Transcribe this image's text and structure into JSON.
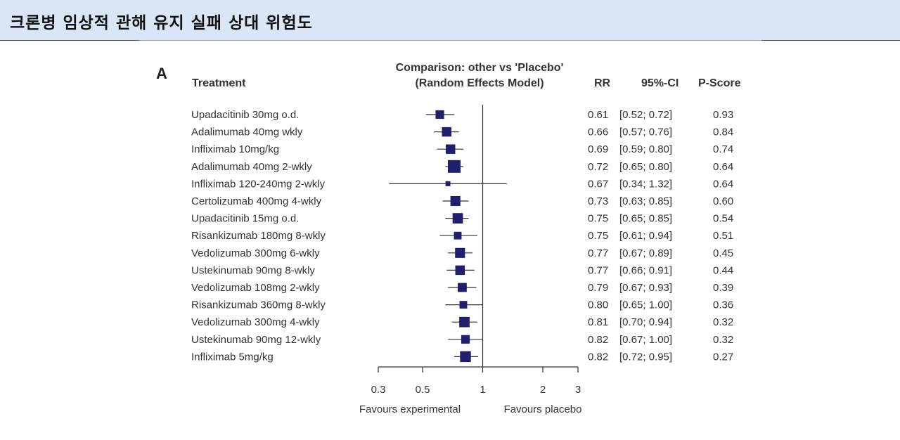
{
  "banner": {
    "title": "크론병 임상적 관해 유지 실패 상대 위험도"
  },
  "chart_data": {
    "type": "forest",
    "panel_label": "A",
    "header": {
      "treatment": "Treatment",
      "comparison_line1": "Comparison: other vs 'Placebo'",
      "comparison_line2": "(Random Effects Model)",
      "rr": "RR",
      "ci": "95%-CI",
      "pscore": "P-Score"
    },
    "scale": "log",
    "xlim": [
      0.3,
      3
    ],
    "ticks": [
      0.3,
      0.5,
      1,
      2,
      3
    ],
    "tick_labels": [
      "0.3",
      "0.5",
      "1",
      "2",
      "3"
    ],
    "reference_line": 1,
    "favours_left": "Favours experimental",
    "favours_right": "Favours placebo",
    "rows": [
      {
        "treatment": "Upadacitinib 30mg o.d.",
        "rr": 0.61,
        "lo": 0.52,
        "hi": 0.72,
        "rr_text": "0.61",
        "ci_text": "[0.52; 0.72]",
        "pscore": "0.93",
        "weight": 0.55
      },
      {
        "treatment": "Adalimumab 40mg wkly",
        "rr": 0.66,
        "lo": 0.57,
        "hi": 0.76,
        "rr_text": "0.66",
        "ci_text": "[0.57; 0.76]",
        "pscore": "0.84",
        "weight": 0.65
      },
      {
        "treatment": "Infliximab 10mg/kg",
        "rr": 0.69,
        "lo": 0.59,
        "hi": 0.8,
        "rr_text": "0.69",
        "ci_text": "[0.59; 0.80]",
        "pscore": "0.74",
        "weight": 0.65
      },
      {
        "treatment": "Adalimumab 40mg 2-wkly",
        "rr": 0.72,
        "lo": 0.65,
        "hi": 0.8,
        "rr_text": "0.72",
        "ci_text": "[0.65; 0.80]",
        "pscore": "0.64",
        "weight": 1.0
      },
      {
        "treatment": "Infliximab 120-240mg 2-wkly",
        "rr": 0.67,
        "lo": 0.34,
        "hi": 1.32,
        "rr_text": "0.67",
        "ci_text": "[0.34; 1.32]",
        "pscore": "0.64",
        "weight": 0.15
      },
      {
        "treatment": "Certolizumab 400mg 4-wkly",
        "rr": 0.73,
        "lo": 0.63,
        "hi": 0.85,
        "rr_text": "0.73",
        "ci_text": "[0.63; 0.85]",
        "pscore": "0.60",
        "weight": 0.7
      },
      {
        "treatment": "Upadacitinib 15mg o.d.",
        "rr": 0.75,
        "lo": 0.65,
        "hi": 0.85,
        "rr_text": "0.75",
        "ci_text": "[0.65; 0.85]",
        "pscore": "0.54",
        "weight": 0.75
      },
      {
        "treatment": "Risankizumab 180mg 8-wkly",
        "rr": 0.75,
        "lo": 0.61,
        "hi": 0.94,
        "rr_text": "0.75",
        "ci_text": "[0.61; 0.94]",
        "pscore": "0.51",
        "weight": 0.45
      },
      {
        "treatment": "Vedolizumab 300mg 6-wkly",
        "rr": 0.77,
        "lo": 0.67,
        "hi": 0.89,
        "rr_text": "0.77",
        "ci_text": "[0.67; 0.89]",
        "pscore": "0.45",
        "weight": 0.7
      },
      {
        "treatment": "Ustekinumab 90mg 8-wkly",
        "rr": 0.77,
        "lo": 0.66,
        "hi": 0.91,
        "rr_text": "0.77",
        "ci_text": "[0.66; 0.91]",
        "pscore": "0.44",
        "weight": 0.65
      },
      {
        "treatment": "Vedolizumab 108mg 2-wkly",
        "rr": 0.79,
        "lo": 0.67,
        "hi": 0.93,
        "rr_text": "0.79",
        "ci_text": "[0.67; 0.93]",
        "pscore": "0.39",
        "weight": 0.6
      },
      {
        "treatment": "Risankizumab 360mg 8-wkly",
        "rr": 0.8,
        "lo": 0.65,
        "hi": 1.0,
        "rr_text": "0.80",
        "ci_text": "[0.65; 1.00]",
        "pscore": "0.36",
        "weight": 0.45
      },
      {
        "treatment": "Vedolizumab 300mg 4-wkly",
        "rr": 0.81,
        "lo": 0.7,
        "hi": 0.94,
        "rr_text": "0.81",
        "ci_text": "[0.70; 0.94]",
        "pscore": "0.32",
        "weight": 0.75
      },
      {
        "treatment": "Ustekinumab 90mg 12-wkly",
        "rr": 0.82,
        "lo": 0.67,
        "hi": 1.0,
        "rr_text": "0.82",
        "ci_text": "[0.67; 1.00]",
        "pscore": "0.32",
        "weight": 0.55
      },
      {
        "treatment": "Infliximab 5mg/kg",
        "rr": 0.82,
        "lo": 0.72,
        "hi": 0.95,
        "rr_text": "0.82",
        "ci_text": "[0.72; 0.95]",
        "pscore": "0.27",
        "weight": 0.8
      }
    ],
    "colors": {
      "marker": "#1f1f6b",
      "line": "#333333",
      "text": "#333333"
    }
  }
}
